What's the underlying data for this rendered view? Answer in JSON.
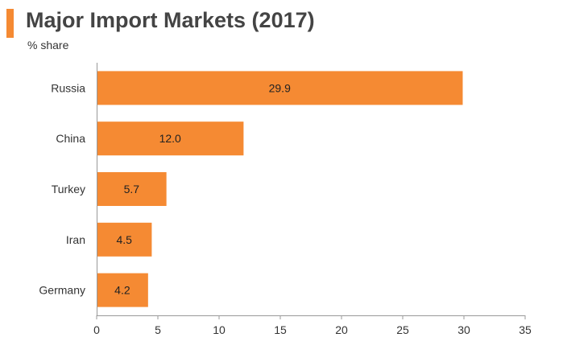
{
  "title": "Major Import Markets (2017)",
  "subtitle": "% share",
  "colors": {
    "bar": "#f58a33",
    "accent": "#f58a33",
    "axis": "#999999"
  },
  "chart_data": {
    "type": "bar",
    "orientation": "horizontal",
    "title": "Major Import Markets (2017)",
    "subtitle": "% share",
    "categories": [
      "Russia",
      "China",
      "Turkey",
      "Iran",
      "Germany"
    ],
    "values": [
      29.9,
      12.0,
      5.7,
      4.5,
      4.2
    ],
    "value_labels": [
      "29.9",
      "12.0",
      "5.7",
      "4.5",
      "4.2"
    ],
    "xlim": [
      0,
      35
    ],
    "xticks": [
      0,
      5,
      10,
      15,
      20,
      25,
      30,
      35
    ],
    "grid": false,
    "legend": "none"
  }
}
